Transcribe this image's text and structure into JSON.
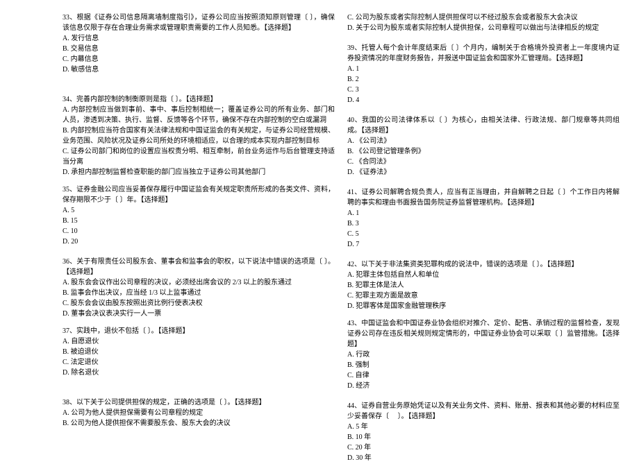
{
  "left": {
    "q33": {
      "text": "33、根据《证券公司信息隔离墙制度指引》，证券公司应当按照须知原则管理〔 〕，确保该信息仅限于存在合理业务需求或管理职责需要的工作人员知悉。【选择题】",
      "A": "A. 发行信息",
      "B": "B. 交易信息",
      "C": "C. 内幕信息",
      "D": "D. 敏感信息"
    },
    "q34": {
      "text": "34、完善内部控制的制衡原则是指〔 〕。【选择题】",
      "A": "A. 内部控制应当做到事前、事中、事后控制相统一；覆盖证券公司的所有业务、部门和人员，渗透到决策、执行、监督、反馈等各个环节，确保不存在内部控制的空白或漏洞",
      "B": "B. 内部控制应当符合国家有关法律法规和中国证监会的有关规定，与证券公司经营规模、业务范围、风险状况及证券公司所处的环境相适应，以合理的成本实现内部控制目标",
      "C": "C. 证券公司部门和岗位的设置应当权责分明、相互牵制，前台业务运作与后台管理支持适当分离",
      "D": "D. 承担内部控制监督检查职能的部门应当独立于证券公司其他部门"
    },
    "q35": {
      "text": "35、证券金融公司应当妥善保存履行中国证监会有关规定职责所形成的各类文件、资料，保存期限不少于〔 〕年。【选择题】",
      "A": "A. 5",
      "B": "B. 15",
      "C": "C. 10",
      "D": "D. 20"
    },
    "q36": {
      "text": "36、关于有限责任公司股东会、董事会和监事会的职权，以下说法中错误的选项是〔 〕。【选择题】",
      "A": "A. 股东会会议作出公司章程的决议，必须经出席会议的 2/3 以上的股东通过",
      "B": "B. 监事会作出决议，应当经 1/3 以上监事通过",
      "C": "C. 股东会会议由股东按照出资比例行使表决权",
      "D": "D. 董事会决议表决实行一人一票"
    },
    "q37": {
      "text": "37、实践中，退伙不包括〔 〕。【选择题】",
      "A": "A. 自愿退伙",
      "B": "B. 被迫退伙",
      "C": "C. 法定退伙",
      "D": "D. 除名退伙"
    },
    "q38": {
      "text": "38、以下关于公司提供担保的规定，正确的选项是〔 〕。【选择题】",
      "A": "A. 公司为他人提供担保需要有公司章程的规定",
      "B": "B. 公司为他人提供担保不需要股东会、股东大会的决议"
    }
  },
  "right": {
    "q38cont": {
      "C": "C. 公司为股东或者实际控制人提供担保可以不经过股东会或者股东大会决议",
      "D": "D. 关于公司为股东或者实际控制人提供担保，公司章程可以做出与法律相反的规定"
    },
    "q39": {
      "text": "39、托管人每个会计年度结束后〔 〕个月内，编制关于合格境外投资者上一年度境内证券投资情况的年度财务报告，并报送中国证监会和国家外汇管理局。【选择题】",
      "A": "A. 1",
      "B": "B. 2",
      "C": "C. 3",
      "D": "D. 4"
    },
    "q40": {
      "text": "40、我国的公司法律体系以〔 〕为核心，由相关法律、行政法规、部门规章等共同组成。【选择题】",
      "A": "A. 《公司法》",
      "B": "B. 《公司登记管理条例》",
      "C": "C. 《合同法》",
      "D": "D. 《证券法》"
    },
    "q41": {
      "text": "41、证券公司解聘合规负责人，应当有正当理由，并自解聘之日起〔 〕个工作日内将解聘的事实和理由书面报告国务院证券监督管理机构。【选择题】",
      "A": "A. 1",
      "B": "B. 3",
      "C": "C. 5",
      "D": "D. 7"
    },
    "q42": {
      "text": "42、以下关于非法集资类犯罪构成的说法中，错误的选项是〔 〕。【选择题】",
      "A": "A. 犯罪主体包括自然人和单位",
      "B": "B. 犯罪主体是法人",
      "C": "C. 犯罪主观方面是故意",
      "D": "D. 犯罪客体是国家金融管理秩序"
    },
    "q43": {
      "text": "43、中国证监会和中国证券业协会组织对推介、定价、配售、承销过程的监督检查，发现证券公司存在违反相关规则规定情形的，中国证券业协会可以采取〔 〕监管措施。【选择题】",
      "A": "A. 行政",
      "B": "B. 强制",
      "C": "C. 自律",
      "D": "D. 经济"
    },
    "q44": {
      "text": "44、证券自营业务原始凭证以及有关业务文件、资料、账册、报表和其他必要的材料应至少妥善保存〔 　〕。【选择题】",
      "A": "A. 5 年",
      "B": "B. 10 年",
      "C": "C. 20 年",
      "D": "D. 30 年"
    }
  }
}
